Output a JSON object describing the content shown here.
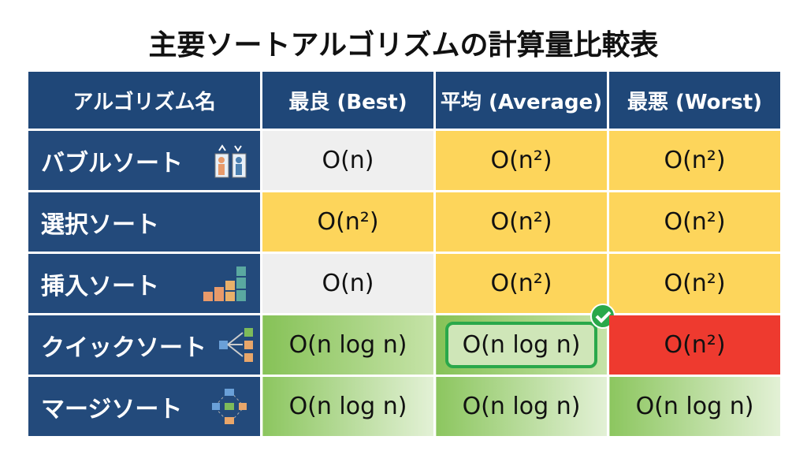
{
  "title": "主要ソートアルゴリズムの計算量比較表",
  "table": {
    "header": [
      "アルゴリズム名",
      "最良 (Best)",
      "平均 (Average)",
      "最悪 (Worst)"
    ],
    "rows": [
      [
        "バブルソート",
        "O(n)",
        "O(n²)",
        "O(n²)"
      ],
      [
        "選択ソート",
        "O(n²)",
        "O(n²)",
        "O(n²)"
      ],
      [
        "挿入ソート",
        "O(n)",
        "O(n²)",
        "O(n²)"
      ],
      [
        "クイックソート",
        "O(n log n)",
        "O(n log n)",
        "O(n²)"
      ],
      [
        "マージソート",
        "O(n log n)",
        "O(n log n)",
        "O(n log n)"
      ]
    ]
  }
}
